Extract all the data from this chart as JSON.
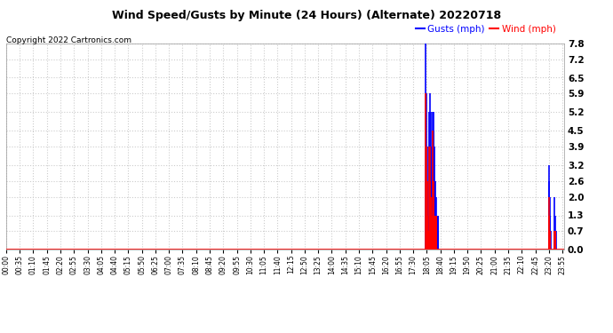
{
  "title": "Wind Speed/Gusts by Minute (24 Hours) (Alternate) 20220718",
  "copyright": "Copyright 2022 Cartronics.com",
  "ylabel_right_ticks": [
    0.0,
    0.7,
    1.3,
    2.0,
    2.6,
    3.2,
    3.9,
    4.5,
    5.2,
    5.9,
    6.5,
    7.2,
    7.8
  ],
  "ylim": [
    0.0,
    7.8
  ],
  "background_color": "#ffffff",
  "plot_bg_color": "#ffffff",
  "grid_color": "#cccccc",
  "gust_color": "#0000ff",
  "wind_color": "#ff0000",
  "baseline_color": "#ff0000",
  "total_minutes": 1440,
  "gusts": {
    "1083": 7.8,
    "1084": 3.9,
    "1085": 5.9,
    "1086": 2.6,
    "1087": 3.9,
    "1088": 1.3,
    "1089": 0.7,
    "1092": 5.2,
    "1093": 5.9,
    "1094": 3.9,
    "1095": 5.2,
    "1096": 2.6,
    "1097": 3.9,
    "1098": 2.0,
    "1099": 1.3,
    "1100": 0.7,
    "1101": 5.2,
    "1102": 5.2,
    "1103": 4.5,
    "1104": 3.9,
    "1105": 2.6,
    "1106": 2.0,
    "1107": 1.3,
    "1108": 2.6,
    "1109": 2.0,
    "1110": 1.3,
    "1111": 1.3,
    "1112": 0.7,
    "1113": 1.3,
    "1114": 1.3,
    "1115": 0.7,
    "1400": 3.2,
    "1401": 2.6,
    "1402": 2.0,
    "1403": 1.3,
    "1404": 0.7,
    "1415": 2.0,
    "1416": 1.3,
    "1417": 0.7,
    "1418": 0.7
  },
  "wind": {
    "1083": 5.9,
    "1084": 2.6,
    "1085": 3.9,
    "1086": 1.3,
    "1087": 2.6,
    "1088": 0.7,
    "1089": 0.7,
    "1092": 3.9,
    "1093": 3.9,
    "1094": 2.6,
    "1095": 2.0,
    "1096": 2.0,
    "1097": 1.3,
    "1098": 1.3,
    "1099": 0.7,
    "1100": 0.7,
    "1101": 4.5,
    "1102": 2.6,
    "1103": 2.0,
    "1104": 1.3,
    "1105": 1.3,
    "1106": 1.3,
    "1107": 1.0,
    "1108": 0.7,
    "1109": 1.3,
    "1110": 1.3,
    "1400": 2.0,
    "1401": 1.3,
    "1402": 0.7,
    "1403": 0.7,
    "1415": 0.7,
    "1416": 0.7,
    "1417": 0.7
  },
  "x_tick_labels": [
    "00:00",
    "00:35",
    "01:10",
    "01:45",
    "02:20",
    "02:55",
    "03:30",
    "04:05",
    "04:40",
    "05:15",
    "05:50",
    "06:25",
    "07:00",
    "07:35",
    "08:10",
    "08:45",
    "09:20",
    "09:55",
    "10:30",
    "11:05",
    "11:40",
    "12:15",
    "12:50",
    "13:25",
    "14:00",
    "14:35",
    "15:10",
    "15:45",
    "16:20",
    "16:55",
    "17:30",
    "18:05",
    "18:40",
    "19:15",
    "19:50",
    "20:25",
    "21:00",
    "21:35",
    "22:10",
    "22:45",
    "23:20",
    "23:55"
  ],
  "x_tick_positions": [
    0,
    35,
    70,
    105,
    140,
    175,
    210,
    245,
    280,
    315,
    350,
    385,
    420,
    455,
    490,
    525,
    560,
    595,
    630,
    665,
    700,
    735,
    770,
    805,
    840,
    875,
    910,
    945,
    980,
    1015,
    1050,
    1085,
    1120,
    1155,
    1190,
    1225,
    1260,
    1295,
    1330,
    1365,
    1400,
    1435
  ]
}
